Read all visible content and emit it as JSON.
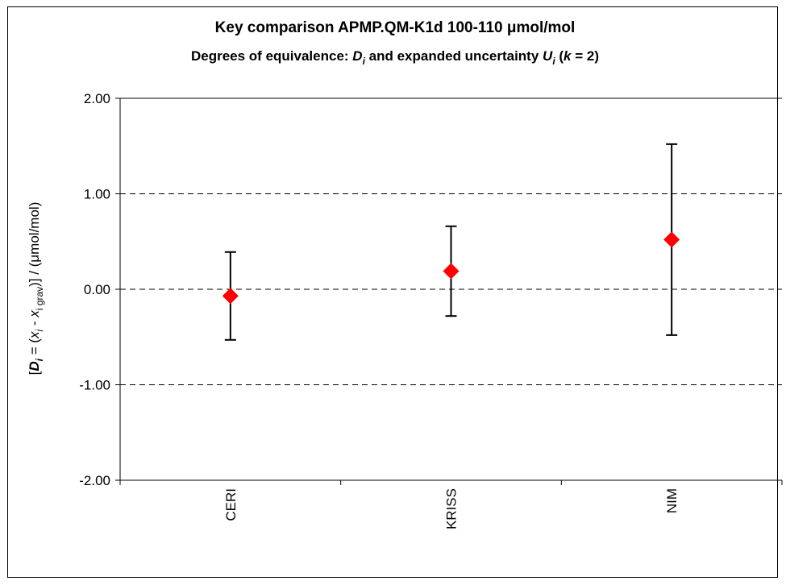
{
  "chart_data": {
    "type": "scatter",
    "title": "Key comparison APMP.QM-K1d 100-110 μmol/mol",
    "subtitle": {
      "prefix": "Degrees of equivalence: ",
      "d_symbol": "D",
      "sub_i": "i",
      "middle": " and expanded uncertainty ",
      "u_symbol": "U",
      "k_open": "  (",
      "k_symbol": "k",
      "k_close": " = 2)"
    },
    "ylabel": {
      "open": "[",
      "d_symbol": "D",
      "sub_i": "i",
      "eq": " = (",
      "x_symbol": "x",
      "minus": " - ",
      "sub_grav": "i grav",
      "close": ")] / (",
      "mu": "μ",
      "unit": "mol/mol)"
    },
    "ylim": [
      -2,
      2
    ],
    "yticks": [
      2,
      1,
      0,
      -1,
      -2
    ],
    "ytick_labels": [
      "2.00",
      "1.00",
      "0.00",
      "-1.00",
      "-2.00"
    ],
    "grid": "horizontal dashed at 1.00, 0.00, -1.00",
    "categories": [
      "CERI",
      "KRISS",
      "NIM"
    ],
    "values": [
      -0.07,
      0.19,
      0.52
    ],
    "uncertainty": [
      0.46,
      0.47,
      1.0
    ],
    "marker_color": "#ff0000",
    "errorbar_color": "#000000"
  }
}
